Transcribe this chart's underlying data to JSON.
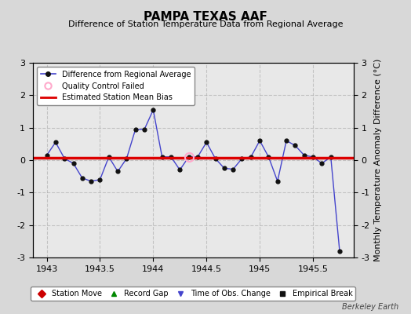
{
  "title": "PAMPA TEXAS AAF",
  "subtitle": "Difference of Station Temperature Data from Regional Average",
  "ylabel": "Monthly Temperature Anomaly Difference (°C)",
  "xlabel": "",
  "credit": "Berkeley Earth",
  "xlim": [
    1942.87,
    1945.88
  ],
  "ylim": [
    -3,
    3
  ],
  "xticks": [
    1943,
    1943.5,
    1944,
    1944.5,
    1945,
    1945.5
  ],
  "yticks": [
    -3,
    -2,
    -1,
    0,
    1,
    2,
    3
  ],
  "bias_value": 0.08,
  "bg_color": "#d8d8d8",
  "plot_bg_color": "#e8e8e8",
  "line_color": "#4444cc",
  "marker_color": "#111111",
  "bias_color": "#dd0000",
  "qc_marker_color": "#ffaacc",
  "x_data": [
    1943.0,
    1943.083,
    1943.167,
    1943.25,
    1943.333,
    1943.417,
    1943.5,
    1943.583,
    1943.667,
    1943.75,
    1943.833,
    1943.917,
    1944.0,
    1944.083,
    1944.167,
    1944.25,
    1944.333,
    1944.417,
    1944.5,
    1944.583,
    1944.667,
    1944.75,
    1944.833,
    1944.917,
    1945.0,
    1945.083,
    1945.167,
    1945.25,
    1945.333,
    1945.417,
    1945.5,
    1945.583,
    1945.667,
    1945.75
  ],
  "y_data": [
    0.15,
    0.55,
    0.05,
    -0.1,
    -0.55,
    -0.65,
    -0.6,
    0.1,
    -0.35,
    0.05,
    0.95,
    0.95,
    1.55,
    0.1,
    0.1,
    -0.3,
    0.1,
    0.1,
    0.55,
    0.05,
    -0.25,
    -0.28,
    0.05,
    0.1,
    0.6,
    0.1,
    -0.65,
    0.6,
    0.45,
    0.15,
    0.1,
    -0.1,
    0.1,
    -2.8
  ],
  "qc_x": [
    1944.333
  ],
  "qc_y": [
    0.1
  ],
  "legend1_items": [
    {
      "label": "Difference from Regional Average",
      "color": "#4444cc",
      "marker": "o"
    },
    {
      "label": "Quality Control Failed",
      "color": "#ffaacc",
      "marker": "o"
    },
    {
      "label": "Estimated Station Mean Bias",
      "color": "#dd0000",
      "marker": "none"
    }
  ],
  "legend2_items": [
    {
      "label": "Station Move",
      "color": "#cc0000",
      "marker": "D"
    },
    {
      "label": "Record Gap",
      "color": "#008800",
      "marker": "^"
    },
    {
      "label": "Time of Obs. Change",
      "color": "#4444cc",
      "marker": "v"
    },
    {
      "label": "Empirical Break",
      "color": "#111111",
      "marker": "s"
    }
  ],
  "title_fontsize": 11,
  "subtitle_fontsize": 8,
  "tick_fontsize": 8,
  "ylabel_fontsize": 8
}
